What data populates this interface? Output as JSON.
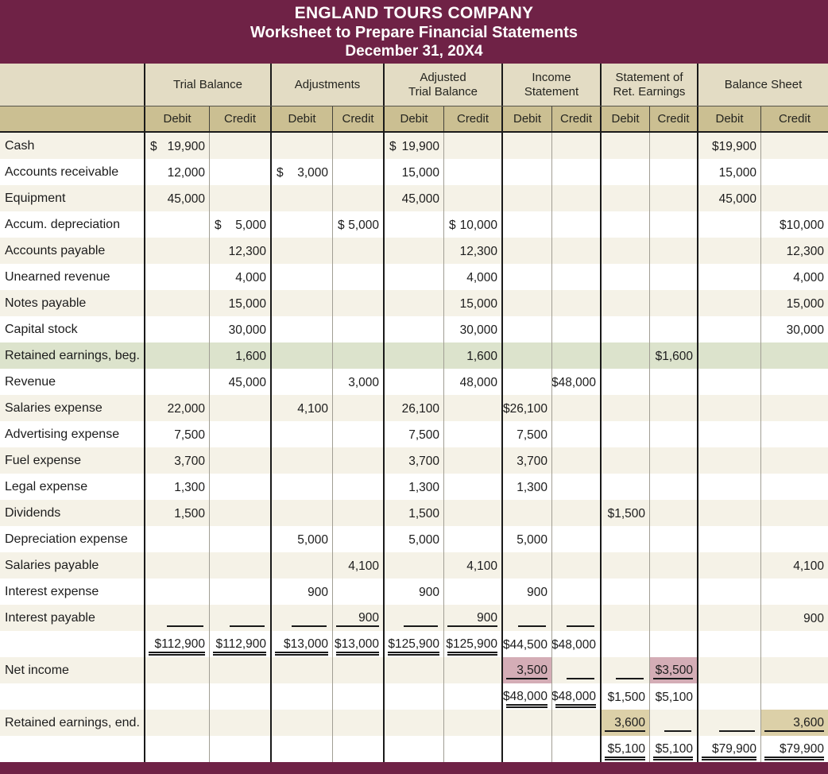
{
  "header": {
    "line1": "ENGLAND TOURS COMPANY",
    "line2": "Worksheet to Prepare Financial Statements",
    "line3": "December 31, 20X4"
  },
  "colors": {
    "maroon": "#6f2246",
    "cream": "#e3dcc4",
    "tan_header": "#cbbf92",
    "row_beige": "#f5f2e7",
    "row_white": "#ffffff",
    "green_highlight": "#dce3cc",
    "pink_highlight": "#d4adb6",
    "tan_highlight": "#dcd0a8",
    "border_dark": "#1a1a1a",
    "border_light": "#a19e94"
  },
  "table": {
    "debit_label": "Debit",
    "credit_label": "Credit",
    "col_keys": [
      "tb_debit",
      "tb_credit",
      "adj_debit",
      "adj_credit",
      "atb_debit",
      "atb_credit",
      "is_debit",
      "is_credit",
      "sre_debit",
      "sre_credit",
      "bs_debit",
      "bs_credit"
    ],
    "groups": [
      {
        "label": [
          "Trial Balance"
        ]
      },
      {
        "label": [
          "Adjustments"
        ]
      },
      {
        "label": [
          "Adjusted",
          "Trial Balance"
        ]
      },
      {
        "label": [
          "Income",
          "Statement"
        ]
      },
      {
        "label": [
          "Statement of",
          "Ret. Earnings"
        ]
      },
      {
        "label": [
          "Balance Sheet"
        ]
      }
    ],
    "rows": [
      {
        "label": "Cash",
        "shade": "beige",
        "cells": [
          {
            "t": "19,900",
            "ds": true
          },
          null,
          null,
          null,
          {
            "t": "19,900",
            "ds": true
          },
          null,
          null,
          null,
          null,
          null,
          {
            "t": "$19,900"
          },
          null
        ]
      },
      {
        "label": "Accounts receivable",
        "shade": "white",
        "cells": [
          {
            "t": "12,000"
          },
          null,
          {
            "t": "3,000",
            "ds": true
          },
          null,
          {
            "t": "15,000"
          },
          null,
          null,
          null,
          null,
          null,
          {
            "t": "15,000"
          },
          null
        ]
      },
      {
        "label": "Equipment",
        "shade": "beige",
        "cells": [
          {
            "t": "45,000"
          },
          null,
          null,
          null,
          {
            "t": "45,000"
          },
          null,
          null,
          null,
          null,
          null,
          {
            "t": "45,000"
          },
          null
        ]
      },
      {
        "label": "Accum. depreciation",
        "shade": "white",
        "cells": [
          null,
          {
            "t": "5,000",
            "ds": true
          },
          null,
          {
            "t": "5,000",
            "ds": true
          },
          null,
          {
            "t": "10,000",
            "ds": true
          },
          null,
          null,
          null,
          null,
          null,
          {
            "t": "$10,000"
          }
        ]
      },
      {
        "label": "Accounts payable",
        "shade": "beige",
        "cells": [
          null,
          {
            "t": "12,300"
          },
          null,
          null,
          null,
          {
            "t": "12,300"
          },
          null,
          null,
          null,
          null,
          null,
          {
            "t": "12,300"
          }
        ]
      },
      {
        "label": "Unearned revenue",
        "shade": "white",
        "cells": [
          null,
          {
            "t": "4,000"
          },
          null,
          null,
          null,
          {
            "t": "4,000"
          },
          null,
          null,
          null,
          null,
          null,
          {
            "t": "4,000"
          }
        ]
      },
      {
        "label": "Notes payable",
        "shade": "beige",
        "cells": [
          null,
          {
            "t": "15,000"
          },
          null,
          null,
          null,
          {
            "t": "15,000"
          },
          null,
          null,
          null,
          null,
          null,
          {
            "t": "15,000"
          }
        ]
      },
      {
        "label": "Capital stock",
        "shade": "white",
        "cells": [
          null,
          {
            "t": "30,000"
          },
          null,
          null,
          null,
          {
            "t": "30,000"
          },
          null,
          null,
          null,
          null,
          null,
          {
            "t": "30,000"
          }
        ]
      },
      {
        "label": "Retained earnings, beg.",
        "shade": "green",
        "cells": [
          null,
          {
            "t": "1,600"
          },
          null,
          null,
          null,
          {
            "t": "1,600"
          },
          null,
          null,
          null,
          {
            "t": "$1,600"
          },
          null,
          null
        ]
      },
      {
        "label": "Revenue",
        "shade": "white",
        "cells": [
          null,
          {
            "t": "45,000"
          },
          null,
          {
            "t": "3,000"
          },
          null,
          {
            "t": "48,000"
          },
          null,
          {
            "t": "$48,000"
          },
          null,
          null,
          null,
          null
        ]
      },
      {
        "label": "Salaries expense",
        "shade": "beige",
        "cells": [
          {
            "t": "22,000"
          },
          null,
          {
            "t": "4,100"
          },
          null,
          {
            "t": "26,100"
          },
          null,
          {
            "t": "$26,100"
          },
          null,
          null,
          null,
          null,
          null
        ]
      },
      {
        "label": "Advertising expense",
        "shade": "white",
        "cells": [
          {
            "t": "7,500"
          },
          null,
          null,
          null,
          {
            "t": "7,500"
          },
          null,
          {
            "t": "7,500"
          },
          null,
          null,
          null,
          null,
          null
        ]
      },
      {
        "label": "Fuel expense",
        "shade": "beige",
        "cells": [
          {
            "t": "3,700"
          },
          null,
          null,
          null,
          {
            "t": "3,700"
          },
          null,
          {
            "t": "3,700"
          },
          null,
          null,
          null,
          null,
          null
        ]
      },
      {
        "label": "Legal expense",
        "shade": "white",
        "cells": [
          {
            "t": "1,300"
          },
          null,
          null,
          null,
          {
            "t": "1,300"
          },
          null,
          {
            "t": "1,300"
          },
          null,
          null,
          null,
          null,
          null
        ]
      },
      {
        "label": "Dividends",
        "shade": "beige",
        "cells": [
          {
            "t": "1,500"
          },
          null,
          null,
          null,
          {
            "t": "1,500"
          },
          null,
          null,
          null,
          {
            "t": "$1,500"
          },
          null,
          null,
          null
        ]
      },
      {
        "label": "Depreciation expense",
        "shade": "white",
        "cells": [
          null,
          null,
          {
            "t": "5,000"
          },
          null,
          {
            "t": "5,000"
          },
          null,
          {
            "t": "5,000"
          },
          null,
          null,
          null,
          null,
          null
        ]
      },
      {
        "label": "Salaries payable",
        "shade": "beige",
        "cells": [
          null,
          null,
          null,
          {
            "t": "4,100"
          },
          null,
          {
            "t": "4,100"
          },
          null,
          null,
          null,
          null,
          null,
          {
            "t": "4,100"
          }
        ]
      },
      {
        "label": "Interest expense",
        "shade": "white",
        "cells": [
          null,
          null,
          {
            "t": "900"
          },
          null,
          {
            "t": "900"
          },
          null,
          {
            "t": "900"
          },
          null,
          null,
          null,
          null,
          null
        ]
      },
      {
        "label": "Interest payable",
        "shade": "beige",
        "cells": [
          {
            "ul": "se"
          },
          {
            "ul": "se"
          },
          {
            "ul": "se"
          },
          {
            "t": "900",
            "ul": "s"
          },
          {
            "ul": "se"
          },
          {
            "t": "900",
            "ul": "s"
          },
          {
            "ul": "se"
          },
          {
            "ul": "se"
          },
          null,
          null,
          null,
          {
            "t": "900"
          }
        ]
      },
      {
        "label": "",
        "shade": "white",
        "cells": [
          {
            "t": "$112,900",
            "ul": "d"
          },
          {
            "t": "$112,900",
            "ul": "d"
          },
          {
            "t": "$13,000",
            "ul": "d"
          },
          {
            "t": "$13,000",
            "ul": "d"
          },
          {
            "t": "$125,900",
            "ul": "d"
          },
          {
            "t": "$125,900",
            "ul": "d"
          },
          {
            "t": "$44,500"
          },
          {
            "t": "$48,000"
          },
          null,
          null,
          null,
          null
        ]
      },
      {
        "label": "Net income",
        "shade": "beige",
        "cells": [
          null,
          null,
          null,
          null,
          null,
          null,
          {
            "t": "3,500",
            "ul": "s",
            "hl": "pink"
          },
          {
            "ul": "se"
          },
          {
            "ul": "se"
          },
          {
            "t": "$3,500",
            "ul": "s",
            "hl": "pink"
          },
          null,
          null
        ]
      },
      {
        "label": "",
        "shade": "white",
        "cells": [
          null,
          null,
          null,
          null,
          null,
          null,
          {
            "t": "$48,000",
            "ul": "d"
          },
          {
            "t": "$48,000",
            "ul": "d"
          },
          {
            "t": "$1,500"
          },
          {
            "t": "$5,100"
          },
          null,
          null
        ]
      },
      {
        "label": "Retained earnings, end.",
        "shade": "beige",
        "cells": [
          null,
          null,
          null,
          null,
          null,
          null,
          null,
          null,
          {
            "t": "3,600",
            "ul": "s",
            "hl": "tan"
          },
          {
            "ul": "se"
          },
          {
            "ul": "se"
          },
          {
            "t": "3,600",
            "ul": "s",
            "hl": "tan"
          }
        ]
      },
      {
        "label": "",
        "shade": "white",
        "cells": [
          null,
          null,
          null,
          null,
          null,
          null,
          null,
          null,
          {
            "t": "$5,100",
            "ul": "d"
          },
          {
            "t": "$5,100",
            "ul": "d"
          },
          {
            "t": "$79,900",
            "ul": "d"
          },
          {
            "t": "$79,900",
            "ul": "d"
          }
        ]
      }
    ]
  }
}
